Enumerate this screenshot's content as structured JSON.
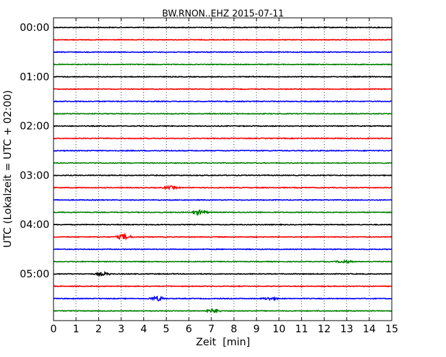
{
  "chart_data": {
    "type": "line",
    "title": "BW.RNON..EHZ 2015-07-11",
    "xlabel": "Zeit  [min]",
    "ylabel": "UTC (Lokalzeit = UTC + 02:00)",
    "xlim": [
      0,
      15
    ],
    "x_ticks": [
      "0",
      "1",
      "2",
      "3",
      "4",
      "5",
      "6",
      "7",
      "8",
      "9",
      "10",
      "11",
      "12",
      "13",
      "14",
      "15"
    ],
    "y_tick_labels": [
      "00:00",
      "01:00",
      "02:00",
      "03:00",
      "04:00",
      "05:00"
    ],
    "grid": "vertical dotted",
    "trace_interval_minutes": 15,
    "trace_color_cycle": [
      "#000000",
      "#ff0000",
      "#0000ff",
      "#008000"
    ],
    "traces": [
      {
        "start": "00:00",
        "color": "#000000",
        "events": []
      },
      {
        "start": "00:15",
        "color": "#ff0000",
        "events": []
      },
      {
        "start": "00:30",
        "color": "#0000ff",
        "events": []
      },
      {
        "start": "00:45",
        "color": "#008000",
        "events": []
      },
      {
        "start": "01:00",
        "color": "#000000",
        "events": []
      },
      {
        "start": "01:15",
        "color": "#ff0000",
        "events": []
      },
      {
        "start": "01:30",
        "color": "#0000ff",
        "events": []
      },
      {
        "start": "01:45",
        "color": "#008000",
        "events": []
      },
      {
        "start": "02:00",
        "color": "#000000",
        "events": []
      },
      {
        "start": "02:15",
        "color": "#ff0000",
        "events": []
      },
      {
        "start": "02:30",
        "color": "#0000ff",
        "events": []
      },
      {
        "start": "02:45",
        "color": "#008000",
        "events": []
      },
      {
        "start": "03:00",
        "color": "#000000",
        "events": []
      },
      {
        "start": "03:15",
        "color": "#ff0000",
        "events": [
          {
            "t": 5.2,
            "amp": 2
          }
        ]
      },
      {
        "start": "03:30",
        "color": "#0000ff",
        "events": []
      },
      {
        "start": "03:45",
        "color": "#008000",
        "events": [
          {
            "t": 6.5,
            "amp": 3
          }
        ]
      },
      {
        "start": "04:00",
        "color": "#000000",
        "events": []
      },
      {
        "start": "04:15",
        "color": "#ff0000",
        "events": [
          {
            "t": 3.1,
            "amp": 4
          }
        ]
      },
      {
        "start": "04:30",
        "color": "#0000ff",
        "events": []
      },
      {
        "start": "04:45",
        "color": "#008000",
        "events": [
          {
            "t": 12.9,
            "amp": 2
          }
        ]
      },
      {
        "start": "05:00",
        "color": "#000000",
        "events": [
          {
            "t": 2.2,
            "amp": 2
          }
        ]
      },
      {
        "start": "05:15",
        "color": "#ff0000",
        "events": []
      },
      {
        "start": "05:30",
        "color": "#0000ff",
        "events": [
          {
            "t": 4.6,
            "amp": 3
          },
          {
            "t": 9.6,
            "amp": 2
          }
        ]
      },
      {
        "start": "05:45",
        "color": "#008000",
        "events": [
          {
            "t": 7.1,
            "amp": 3
          }
        ]
      }
    ]
  }
}
